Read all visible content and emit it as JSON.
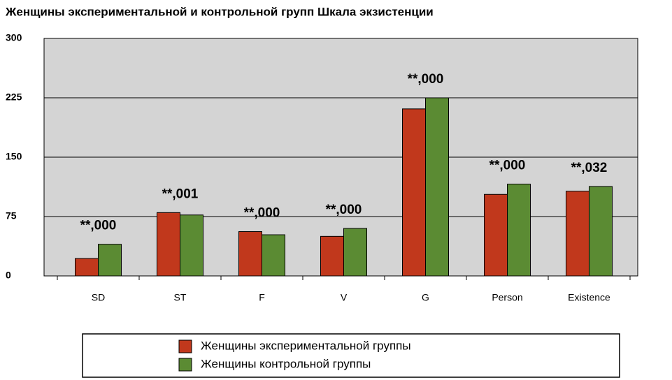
{
  "chart_data": {
    "type": "bar",
    "title": "Женщины экспериментальной и контрольной групп Шкала экзистенции",
    "categories": [
      "SD",
      "ST",
      "F",
      "V",
      "G",
      "Person",
      "Existence"
    ],
    "series": [
      {
        "name": "Женщины экспериментальной группы",
        "color": "#c1381c",
        "values": [
          22,
          80,
          56,
          50,
          211,
          103,
          107
        ]
      },
      {
        "name": "Женщины контрольной группы",
        "color": "#5b8b33",
        "values": [
          40,
          77,
          52,
          60,
          225,
          116,
          113
        ]
      }
    ],
    "annotations": [
      "**,000",
      "**,001",
      "**,000",
      "**,000",
      "**,000",
      "**,000",
      "**,032"
    ],
    "ylim": [
      0,
      300
    ],
    "yticks": [
      0,
      75,
      150,
      225,
      300
    ],
    "grid": true,
    "legend": "bottom"
  }
}
